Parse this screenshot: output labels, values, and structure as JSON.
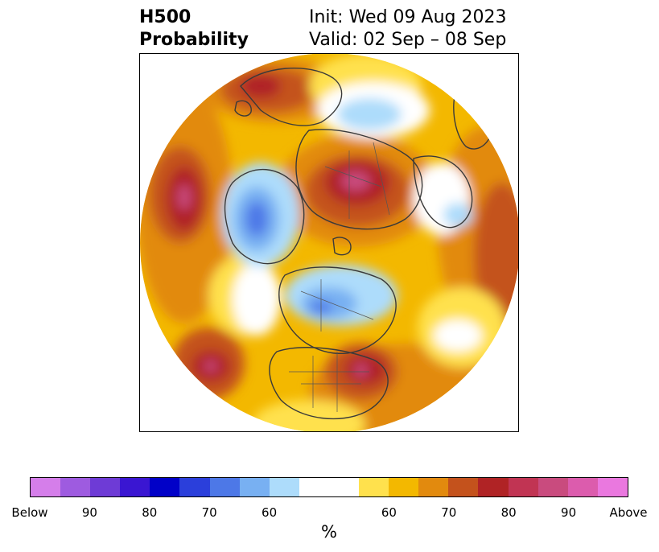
{
  "title": {
    "left_line1": "H500",
    "left_line2": "Probability",
    "right_line1": "Init: Wed 09 Aug 2023",
    "right_line2": "Valid: 02 Sep – 08 Sep"
  },
  "colorbar": {
    "unit": "%",
    "segments": [
      {
        "color": "#d57eea"
      },
      {
        "color": "#9e5be0"
      },
      {
        "color": "#6e3bd6"
      },
      {
        "color": "#3a16d2"
      },
      {
        "color": "#0101c8"
      },
      {
        "color": "#2b3fdb"
      },
      {
        "color": "#4d78e7"
      },
      {
        "color": "#78b0f2"
      },
      {
        "color": "#addcfb"
      },
      {
        "color": "#ffffff"
      },
      {
        "color": "#ffffff"
      },
      {
        "color": "#ffe14d"
      },
      {
        "color": "#f3b800"
      },
      {
        "color": "#e28a0e"
      },
      {
        "color": "#c4521c"
      },
      {
        "color": "#b02325"
      },
      {
        "color": "#c13453"
      },
      {
        "color": "#c94b7e"
      },
      {
        "color": "#dc5cad"
      },
      {
        "color": "#ea78df"
      }
    ],
    "tick_labels": [
      {
        "text": "Below",
        "index": 0
      },
      {
        "text": "90",
        "index": 2
      },
      {
        "text": "80",
        "index": 4
      },
      {
        "text": "70",
        "index": 6
      },
      {
        "text": "60",
        "index": 8
      },
      {
        "text": "60",
        "index": 12
      },
      {
        "text": "70",
        "index": 14
      },
      {
        "text": "80",
        "index": 16
      },
      {
        "text": "90",
        "index": 18
      },
      {
        "text": "Above",
        "index": 20
      }
    ]
  }
}
